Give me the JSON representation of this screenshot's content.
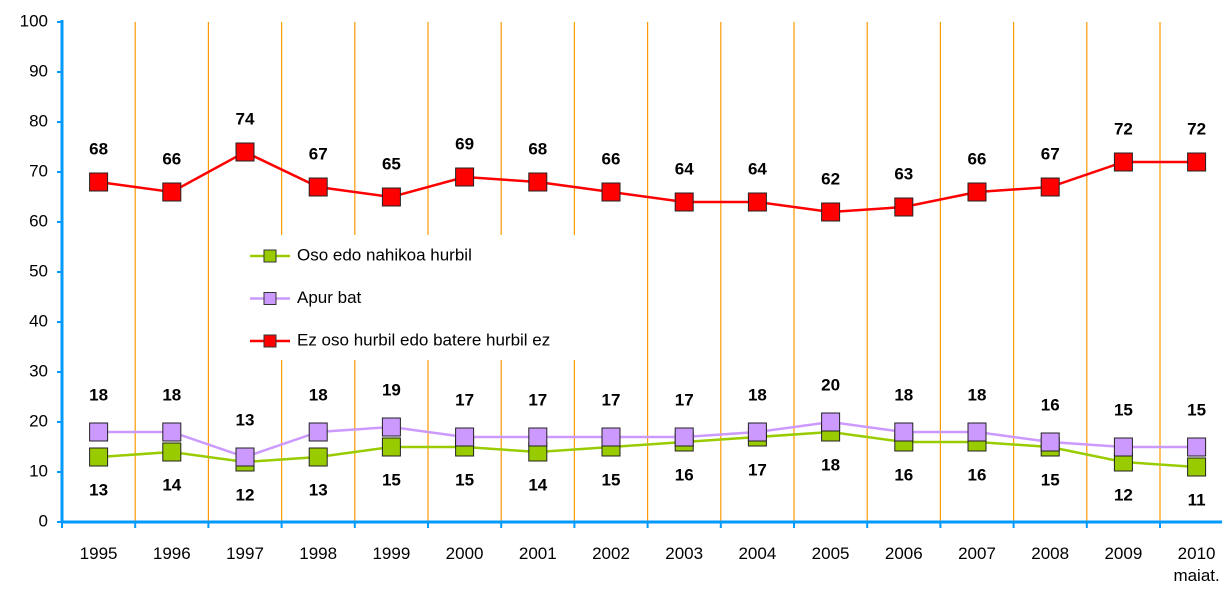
{
  "chart_data": {
    "type": "line",
    "categories": [
      "1995",
      "1996",
      "1997",
      "1998",
      "1999",
      "2000",
      "2001",
      "2002",
      "2003",
      "2004",
      "2005",
      "2006",
      "2007",
      "2008",
      "2009",
      "2010\nmaiat."
    ],
    "series": [
      {
        "name": "Oso edo nahikoa hurbil",
        "color": "#99cc00",
        "values": [
          13,
          14,
          12,
          13,
          15,
          15,
          14,
          15,
          16,
          17,
          18,
          16,
          16,
          15,
          12,
          11
        ]
      },
      {
        "name": "Apur bat",
        "color": "#cc99ff",
        "values": [
          18,
          18,
          13,
          18,
          19,
          17,
          17,
          17,
          17,
          18,
          20,
          18,
          18,
          16,
          15,
          15
        ]
      },
      {
        "name": "Ez oso hurbil edo batere hurbil ez",
        "color": "#ff0000",
        "values": [
          68,
          66,
          74,
          67,
          65,
          69,
          68,
          66,
          64,
          64,
          62,
          63,
          66,
          67,
          72,
          72
        ]
      }
    ],
    "ylim": [
      0,
      100
    ],
    "yticks": [
      0,
      10,
      20,
      30,
      40,
      50,
      60,
      70,
      80,
      90,
      100
    ]
  }
}
